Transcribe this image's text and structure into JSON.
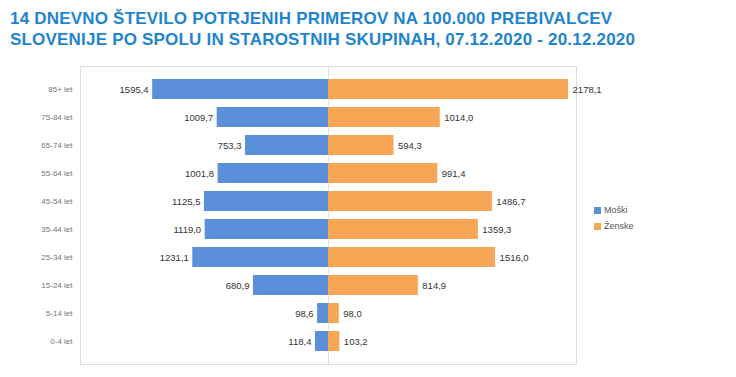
{
  "chart_data": {
    "type": "bar",
    "orientation": "horizontal",
    "title": "14 DNEVNO ŠTEVILO POTRJENIH PRIMEROV NA 100.000 PREBIVALCEV\nSLOVENIJE PO SPOLU IN STAROSTNIH SKUPINAH, 07.12.2020 - 20.12.2020",
    "categories": [
      "85+ let",
      "75-84 let",
      "65-74 let",
      "55-64 let",
      "45-54 let",
      "35-44 let",
      "25-34 let",
      "15-24 let",
      "5-14 let",
      "0-4 let"
    ],
    "series": [
      {
        "name": "Moški",
        "color": "#5b8fd9",
        "values": [
          1595.4,
          1009.7,
          753.3,
          1001.8,
          1125.5,
          1119.0,
          1231.1,
          680.9,
          98.6,
          118.4
        ],
        "value_labels": [
          "1595,4",
          "1009,7",
          "753,3",
          "1001,8",
          "1125,5",
          "1119,0",
          "1231,1",
          "680,9",
          "98,6",
          "118,4"
        ]
      },
      {
        "name": "Ženske",
        "color": "#f6a654",
        "values": [
          2178.1,
          1014.0,
          594.3,
          991.4,
          1486.7,
          1359.3,
          1516.0,
          814.9,
          98.0,
          103.2
        ],
        "value_labels": [
          "2178,1",
          "1014,0",
          "594,3",
          "991,4",
          "1486,7",
          "1359,3",
          "1516,0",
          "814,9",
          "98,0",
          "103,2"
        ]
      }
    ],
    "xlim": [
      0,
      2250
    ],
    "xticks": [],
    "data_labels": true,
    "tick_labels": "y",
    "legend": "right",
    "grid": false
  }
}
